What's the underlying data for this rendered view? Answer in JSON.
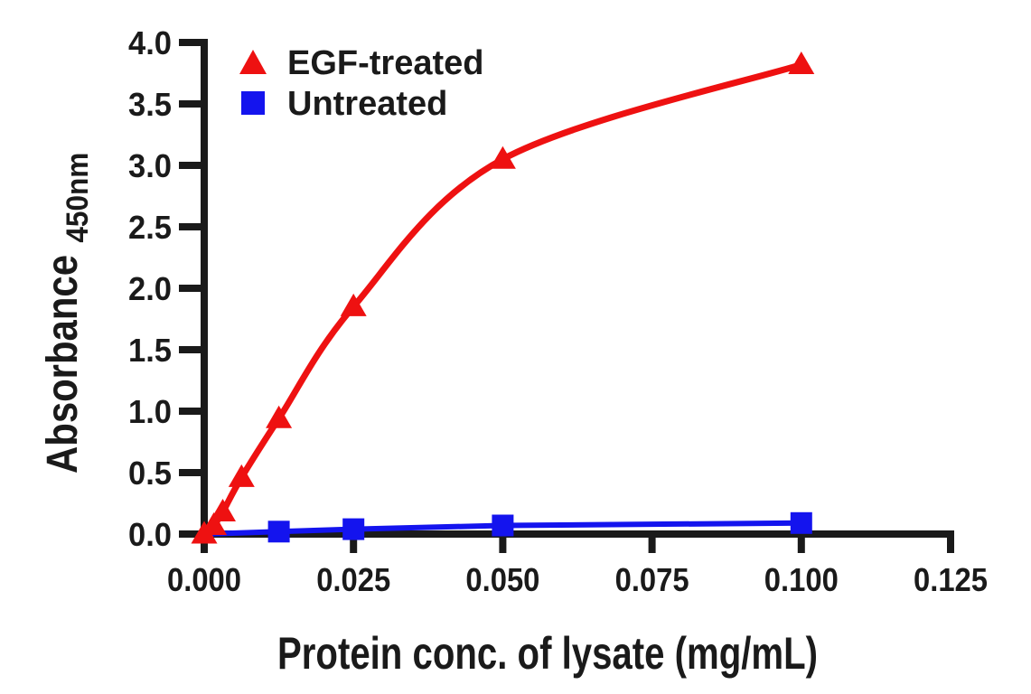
{
  "figure": {
    "background": "#ffffff",
    "text_color": "#1a1a1a"
  },
  "chart_data": {
    "type": "line",
    "title": "",
    "xlabel": "Protein conc. of lysate (mg/mL)",
    "ylabel": "Absorbance",
    "ylabel_subscript": "450nm",
    "xlim": [
      0,
      0.125
    ],
    "ylim": [
      0.0,
      4.0
    ],
    "grid": false,
    "legend_position": "top-left inside",
    "x_ticks": {
      "values": [
        0,
        0.025,
        0.05,
        0.075,
        0.1,
        0.125
      ],
      "labels": [
        "0.000",
        "0.025",
        "0.050",
        "0.075",
        "0.100",
        "0.125"
      ]
    },
    "y_ticks": {
      "values": [
        0,
        0.5,
        1.0,
        1.5,
        2.0,
        2.5,
        3.0,
        3.5,
        4.0
      ],
      "labels": [
        "0.0",
        "0.5",
        "1.0",
        "1.5",
        "2.0",
        "2.5",
        "3.0",
        "3.5",
        "4.0"
      ]
    },
    "series": [
      {
        "name": "EGF-treated",
        "color": "#ee1111",
        "marker": "triangle",
        "line_style": "smooth",
        "x": [
          0,
          0.0016,
          0.0031,
          0.00625,
          0.0125,
          0.025,
          0.05,
          0.1
        ],
        "y": [
          0.0,
          0.07,
          0.18,
          0.46,
          0.94,
          1.85,
          3.05,
          3.82
        ],
        "markers_from_index": 0
      },
      {
        "name": "Untreated",
        "color": "#1414ee",
        "marker": "square",
        "line_style": "straight",
        "x": [
          0,
          0.0125,
          0.025,
          0.05,
          0.1
        ],
        "y": [
          0.0,
          0.02,
          0.04,
          0.07,
          0.09
        ],
        "markers_from_index": 1
      }
    ]
  }
}
